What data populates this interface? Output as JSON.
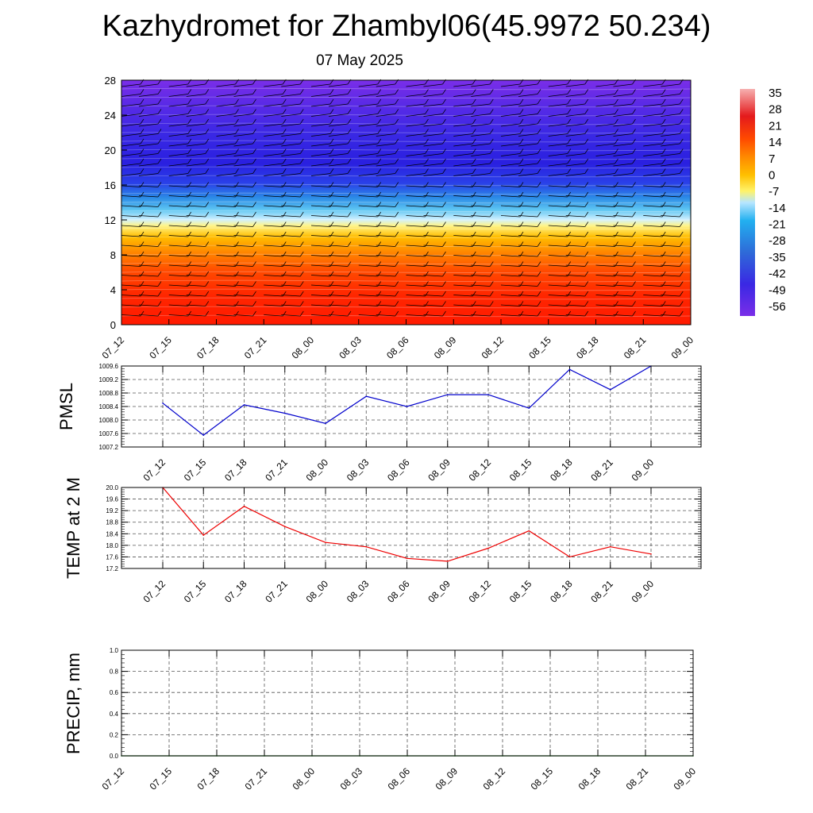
{
  "page": {
    "title": "Kazhydromet for Zhambyl06(45.9972 50.234)",
    "subtitle": "07 May 2025"
  },
  "chart_data": [
    {
      "type": "heatmap",
      "name": "temperature-wind-profile",
      "y_ticks": [
        "0",
        "4",
        "8",
        "12",
        "16",
        "20",
        "24",
        "28"
      ],
      "ylim": [
        0,
        28
      ],
      "x_ticks": [
        "07_12",
        "07_15",
        "07_18",
        "07_21",
        "08_00",
        "08_03",
        "08_06",
        "08_09",
        "08_12",
        "08_15",
        "08_18",
        "08_21",
        "09_00"
      ],
      "colorbar_labels": [
        "35",
        "28",
        "21",
        "14",
        "7",
        "0",
        "-7",
        "-14",
        "-21",
        "-28",
        "-35",
        "-42",
        "-49",
        "-56"
      ],
      "color_stops": [
        "#f6a0a0",
        "#e41a1c",
        "#ff2a00",
        "#ff5a00",
        "#ff9000",
        "#ffc000",
        "#fff36a",
        "#b8e6ff",
        "#22b0f0",
        "#2e6ad8",
        "#3a28d8",
        "#7a2ae8"
      ]
    },
    {
      "type": "line",
      "ylabel": "PMSL",
      "color": "#0000cc",
      "ylim": [
        1007.2,
        1009.6
      ],
      "y_ticks": [
        "1007.2",
        "1007.6",
        "1008.0",
        "1008.4",
        "1008.8",
        "1009.2",
        "1009.6"
      ],
      "x": [
        "07_12",
        "07_15",
        "07_18",
        "07_21",
        "08_00",
        "08_03",
        "08_06",
        "08_09",
        "08_12",
        "08_15",
        "08_18",
        "08_21",
        "09_00"
      ],
      "values": [
        1008.5,
        1007.55,
        1008.45,
        1008.2,
        1007.9,
        1008.7,
        1008.4,
        1008.75,
        1008.75,
        1008.35,
        1009.5,
        1008.9,
        1009.6
      ]
    },
    {
      "type": "line",
      "ylabel": "TEMP at 2 M",
      "color": "#ee0000",
      "ylim": [
        17.2,
        20.0
      ],
      "y_ticks": [
        "17.2",
        "17.6",
        "18.0",
        "18.4",
        "18.8",
        "19.2",
        "19.6",
        "20.0"
      ],
      "x": [
        "07_12",
        "07_15",
        "07_18",
        "07_21",
        "08_00",
        "08_03",
        "08_06",
        "08_09",
        "08_12",
        "08_15",
        "08_18",
        "08_21",
        "09_00"
      ],
      "values": [
        20.0,
        18.35,
        19.35,
        18.65,
        18.1,
        17.95,
        17.55,
        17.45,
        17.9,
        18.5,
        17.6,
        17.95,
        17.7
      ]
    },
    {
      "type": "line",
      "ylabel": "PRECIP, mm",
      "color": "#008800",
      "ylim": [
        0.0,
        1.0
      ],
      "y_ticks": [
        "0.0",
        "0.2",
        "0.4",
        "0.6",
        "0.8",
        "1.0"
      ],
      "x": [
        "07_12",
        "07_15",
        "07_18",
        "07_21",
        "08_00",
        "08_03",
        "08_06",
        "08_09",
        "08_12",
        "08_15",
        "08_18",
        "08_21",
        "09_00"
      ],
      "values": [
        0,
        0,
        0,
        0,
        0,
        0,
        0,
        0,
        0,
        0,
        0,
        0,
        0
      ]
    }
  ]
}
